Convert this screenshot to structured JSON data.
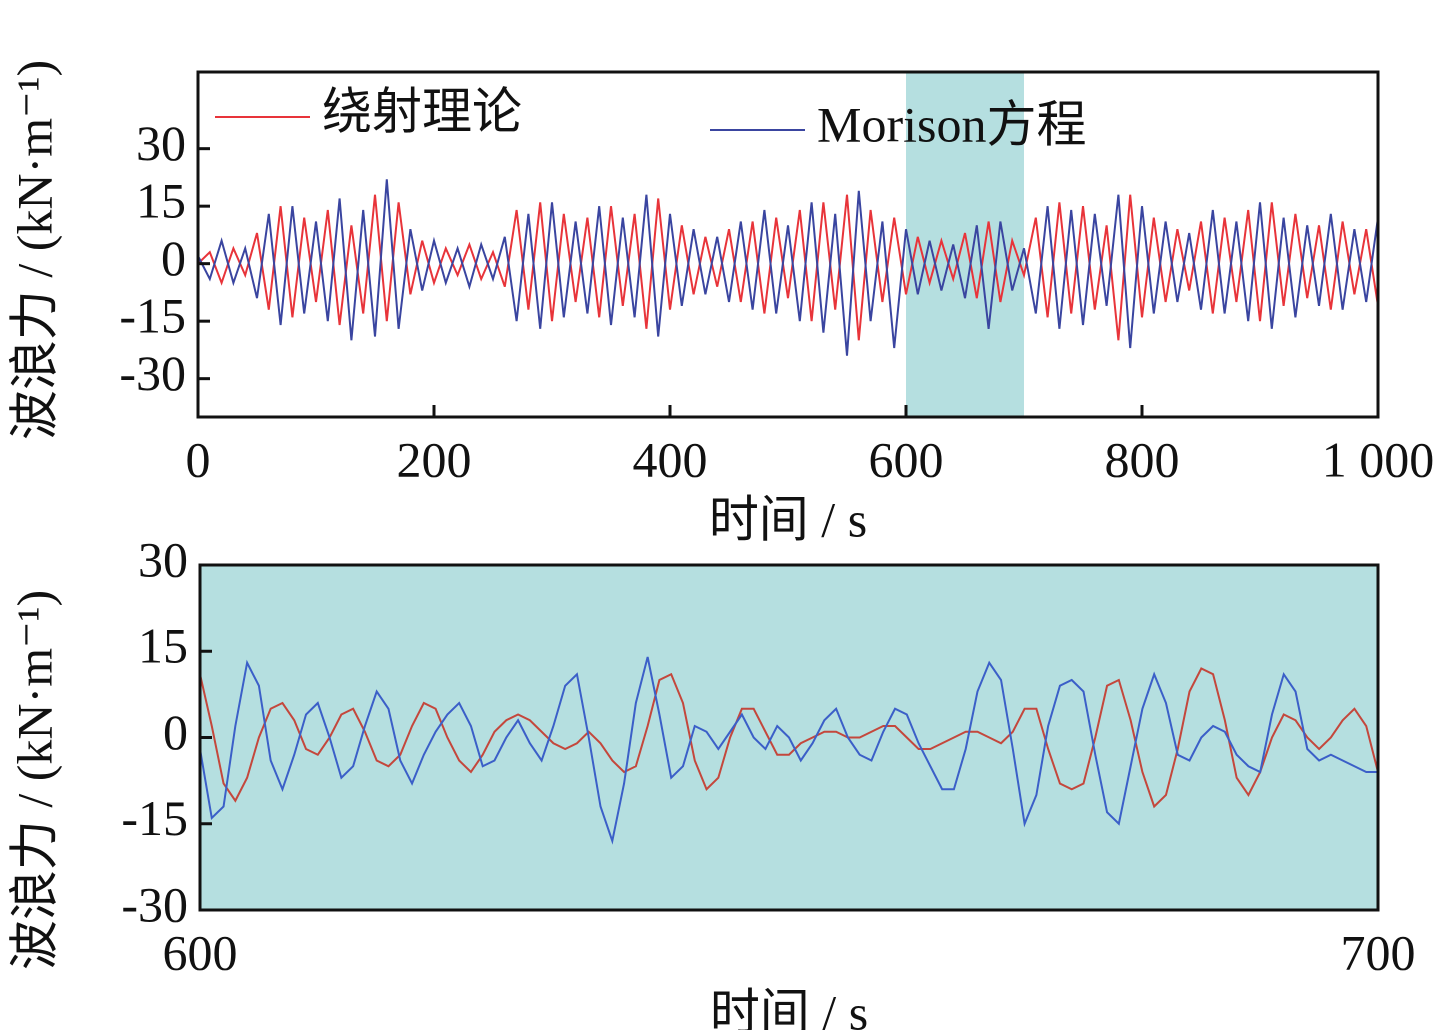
{
  "chart_data": [
    {
      "type": "line",
      "xlabel": "时间 / s",
      "ylabel": "波浪力 / (kN·m⁻¹)",
      "xlim": [
        0,
        1000
      ],
      "ylim": [
        -40,
        50
      ],
      "xticks": [
        0,
        200,
        400,
        600,
        800,
        {
          "value": 1000,
          "label": "1 000"
        }
      ],
      "yticks": [
        -30,
        -15,
        0,
        15,
        30
      ],
      "highlight": {
        "x": [
          600,
          700
        ],
        "color": "#b5dfe0"
      },
      "x": [
        0,
        10,
        20,
        30,
        40,
        50,
        60,
        70,
        80,
        90,
        100,
        110,
        120,
        130,
        140,
        150,
        160,
        170,
        180,
        190,
        200,
        210,
        220,
        230,
        240,
        250,
        260,
        270,
        280,
        290,
        300,
        310,
        320,
        330,
        340,
        350,
        360,
        370,
        380,
        390,
        400,
        410,
        420,
        430,
        440,
        450,
        460,
        470,
        480,
        490,
        500,
        510,
        520,
        530,
        540,
        550,
        560,
        570,
        580,
        590,
        600,
        610,
        620,
        630,
        640,
        650,
        660,
        670,
        680,
        690,
        700,
        710,
        720,
        730,
        740,
        750,
        760,
        770,
        780,
        790,
        800,
        810,
        820,
        830,
        840,
        850,
        860,
        870,
        880,
        890,
        900,
        910,
        920,
        930,
        940,
        950,
        960,
        970,
        980,
        990,
        1000
      ],
      "series": [
        {
          "name": "绕射理论",
          "color": "#e8343a",
          "values": [
            0,
            3,
            -5,
            4,
            -3,
            8,
            -12,
            15,
            -14,
            12,
            -10,
            14,
            -16,
            10,
            -13,
            18,
            -15,
            16,
            -8,
            6,
            -5,
            4,
            -3,
            5,
            -4,
            3,
            -6,
            14,
            -12,
            16,
            -15,
            13,
            -10,
            12,
            -14,
            15,
            -11,
            13,
            -17,
            17,
            -12,
            10,
            -8,
            7,
            -6,
            9,
            -10,
            11,
            -13,
            12,
            -9,
            14,
            -15,
            16,
            -12,
            18,
            -20,
            14,
            -10,
            12,
            -8,
            7,
            -5,
            6,
            -4,
            8,
            -9,
            11,
            -10,
            6,
            -3,
            12,
            -14,
            16,
            -13,
            15,
            -12,
            10,
            -20,
            18,
            -14,
            12,
            -10,
            9,
            -7,
            11,
            -13,
            12,
            -10,
            14,
            -15,
            16,
            -11,
            13,
            -9,
            10,
            -12,
            11,
            -8,
            9,
            -11
          ]
        },
        {
          "name": "Morison方程",
          "color": "#3a45a0",
          "values": [
            2,
            -4,
            6,
            -5,
            4,
            -9,
            13,
            -16,
            15,
            -13,
            11,
            -15,
            17,
            -20,
            14,
            -19,
            22,
            -17,
            9,
            -7,
            6,
            -5,
            4,
            -6,
            5,
            -4,
            7,
            -15,
            13,
            -17,
            16,
            -14,
            11,
            -13,
            15,
            -16,
            12,
            -14,
            18,
            -19,
            13,
            -11,
            9,
            -8,
            7,
            -10,
            11,
            -12,
            14,
            -13,
            10,
            -15,
            16,
            -18,
            13,
            -24,
            19,
            -15,
            11,
            -22,
            9,
            -8,
            6,
            -7,
            5,
            -9,
            10,
            -17,
            11,
            -7,
            4,
            -13,
            15,
            -17,
            14,
            -16,
            13,
            -11,
            18,
            -22,
            15,
            -13,
            11,
            -10,
            8,
            -12,
            14,
            -13,
            11,
            -15,
            16,
            -17,
            12,
            -14,
            10,
            -11,
            13,
            -12,
            9,
            -10,
            12
          ]
        }
      ]
    },
    {
      "type": "line",
      "xlabel": "时间 / s",
      "ylabel": "波浪力 / (kN·m⁻¹)",
      "xlim": [
        600,
        700
      ],
      "ylim": [
        -30,
        30
      ],
      "xticks": [
        600,
        700
      ],
      "yticks": [
        -30,
        -15,
        0,
        15,
        30
      ],
      "background": "#b5dfe0",
      "x": [
        600,
        601,
        602,
        603,
        604,
        605,
        606,
        607,
        608,
        609,
        610,
        611,
        612,
        613,
        614,
        615,
        616,
        617,
        618,
        619,
        620,
        621,
        622,
        623,
        624,
        625,
        626,
        627,
        628,
        629,
        630,
        631,
        632,
        633,
        634,
        635,
        636,
        637,
        638,
        639,
        640,
        641,
        642,
        643,
        644,
        645,
        646,
        647,
        648,
        649,
        650,
        651,
        652,
        653,
        654,
        655,
        656,
        657,
        658,
        659,
        660,
        661,
        662,
        663,
        664,
        665,
        666,
        667,
        668,
        669,
        670,
        671,
        672,
        673,
        674,
        675,
        676,
        677,
        678,
        679,
        680,
        681,
        682,
        683,
        684,
        685,
        686,
        687,
        688,
        689,
        690,
        691,
        692,
        693,
        694,
        695,
        696,
        697,
        698,
        699,
        700
      ],
      "series": [
        {
          "name": "绕射理论",
          "color": "#c4473c",
          "values": [
            11,
            2,
            -8,
            -11,
            -7,
            0,
            5,
            6,
            3,
            -2,
            -3,
            0,
            4,
            5,
            1,
            -4,
            -5,
            -3,
            2,
            6,
            5,
            0,
            -4,
            -6,
            -3,
            1,
            3,
            4,
            3,
            1,
            -1,
            -2,
            -1,
            1,
            -1,
            -4,
            -6,
            -5,
            2,
            10,
            11,
            6,
            -4,
            -9,
            -7,
            0,
            5,
            5,
            1,
            -3,
            -3,
            -1,
            0,
            1,
            1,
            0,
            0,
            1,
            2,
            2,
            0,
            -2,
            -2,
            -1,
            0,
            1,
            1,
            0,
            -1,
            1,
            5,
            5,
            -2,
            -8,
            -9,
            -8,
            0,
            9,
            10,
            3,
            -6,
            -12,
            -10,
            -2,
            8,
            12,
            11,
            3,
            -7,
            -10,
            -6,
            0,
            4,
            3,
            0,
            -2,
            0,
            3,
            5,
            2,
            -6
          ]
        },
        {
          "name": "Morison方程",
          "color": "#3b5fc8",
          "values": [
            -2,
            -14,
            -12,
            2,
            13,
            9,
            -4,
            -9,
            -3,
            4,
            6,
            0,
            -7,
            -5,
            2,
            8,
            5,
            -4,
            -8,
            -3,
            1,
            4,
            6,
            2,
            -5,
            -4,
            0,
            3,
            -1,
            -4,
            2,
            9,
            11,
            0,
            -12,
            -18,
            -8,
            6,
            14,
            4,
            -7,
            -5,
            2,
            1,
            -2,
            1,
            4,
            0,
            -2,
            2,
            0,
            -4,
            -1,
            3,
            5,
            0,
            -3,
            -4,
            1,
            5,
            4,
            -1,
            -5,
            -9,
            -9,
            -2,
            8,
            13,
            10,
            -2,
            -15,
            -10,
            2,
            9,
            10,
            8,
            -3,
            -13,
            -15,
            -5,
            5,
            11,
            6,
            -3,
            -4,
            0,
            2,
            1,
            -3,
            -5,
            -6,
            4,
            11,
            8,
            -2,
            -4,
            -3,
            -4,
            -5,
            -6,
            -6
          ]
        }
      ]
    }
  ]
}
